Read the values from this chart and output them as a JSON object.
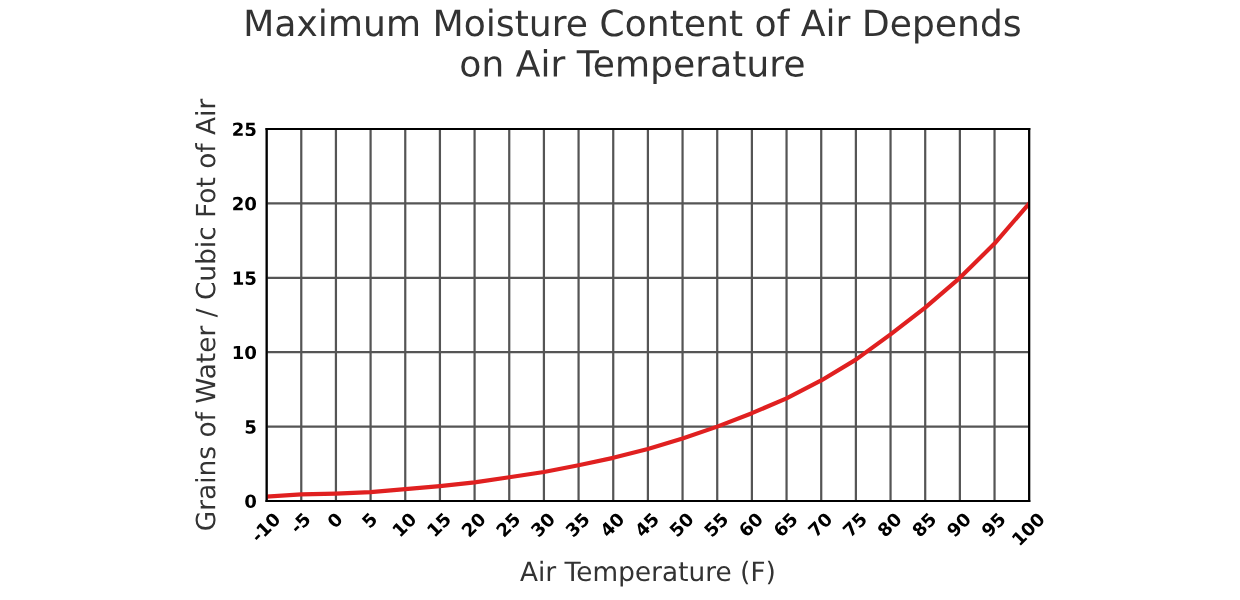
{
  "chart_data": {
    "type": "line",
    "title": "Maximum Moisture Content of Air Depends\non Air Temperature",
    "xlabel": "Air Temperature (F)",
    "ylabel": "Grains of Water / Cubic Fot of Air",
    "x": [
      -10,
      -5,
      0,
      5,
      10,
      15,
      20,
      25,
      30,
      35,
      40,
      45,
      50,
      55,
      60,
      65,
      70,
      75,
      80,
      85,
      90,
      95,
      100
    ],
    "series": [
      {
        "color": "#e02020",
        "values": [
          0.3,
          0.45,
          0.5,
          0.6,
          0.8,
          1.0,
          1.25,
          1.6,
          1.95,
          2.4,
          2.9,
          3.5,
          4.2,
          5.0,
          5.9,
          6.9,
          8.1,
          9.5,
          11.2,
          13.0,
          15.0,
          17.3,
          20.0
        ]
      }
    ],
    "xlim": [
      -10,
      100
    ],
    "xticks": [
      -10,
      -5,
      0,
      5,
      10,
      15,
      20,
      25,
      30,
      35,
      40,
      45,
      50,
      55,
      60,
      65,
      70,
      75,
      80,
      85,
      90,
      95,
      100
    ],
    "ylim": [
      0,
      25
    ],
    "yticks": [
      0,
      5,
      10,
      15,
      20,
      25
    ],
    "grid": true,
    "marker": "none",
    "line_style": "solid"
  }
}
